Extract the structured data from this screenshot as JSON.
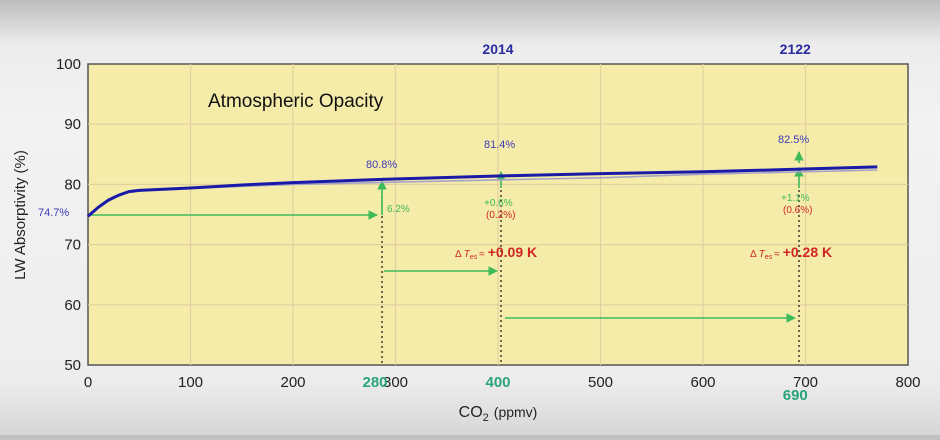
{
  "chart_data": {
    "type": "line",
    "title": "Atmospheric Opacity",
    "xlabel_main": "CO",
    "xlabel_sub": "2",
    "xlabel_unit": "(ppmv)",
    "ylabel": "LW Absorptivity (%)",
    "xlim": [
      0,
      800
    ],
    "ylim": [
      50,
      100
    ],
    "x_ticks": [
      0,
      100,
      200,
      300,
      400,
      500,
      600,
      700,
      800
    ],
    "y_ticks": [
      50,
      60,
      70,
      80,
      90,
      100
    ],
    "special_ticks": [
      {
        "label": "280",
        "x": 280
      },
      {
        "label": "400",
        "x": 400
      },
      {
        "label": "690",
        "x": 690
      }
    ],
    "year_labels": [
      {
        "label": "2014",
        "x": 400
      },
      {
        "label": "2122",
        "x": 690
      }
    ],
    "grid": true,
    "background": "#f6ecaa",
    "series": [
      {
        "color": "#1a1aa8",
        "x": [
          0,
          10,
          20,
          30,
          40,
          50,
          100,
          150,
          200,
          280,
          400,
          500,
          600,
          690,
          770
        ],
        "y": [
          74.7,
          76.2,
          77.4,
          78.2,
          78.8,
          79.0,
          79.4,
          79.9,
          80.3,
          80.8,
          81.4,
          81.8,
          82.1,
          82.5,
          82.9
        ]
      },
      {
        "color": "#a3a3c8",
        "x": [
          50,
          200,
          440,
          500,
          600,
          770
        ],
        "y": [
          79.0,
          80.0,
          80.9,
          81.1,
          81.7,
          82.4
        ]
      }
    ],
    "annotations": {
      "pct_74_7": "74.7%",
      "pct_80_8": "80.8%",
      "pct_81_4": "81.4%",
      "pct_82_5": "82.5%",
      "delta_6_2": "6.2%",
      "delta_0_6": "+0.6%",
      "delta_0_6_paren": "(0.2%)",
      "delta_1_1": "+1.1%",
      "delta_1_1_paren": "(0.6%)",
      "dt_prefix": "Δ",
      "dt_symbol": "T",
      "dt_sub": "es",
      "dt_approx": "≈",
      "dt_09": "+0.09 K",
      "dt_28": "+0.28 K"
    },
    "colors": {
      "accent_blue": "#1a1aa8",
      "label_blue": "#3b3bb8",
      "green": "#3dbb5a",
      "teal": "#2aa57a",
      "red": "#d02525"
    }
  }
}
